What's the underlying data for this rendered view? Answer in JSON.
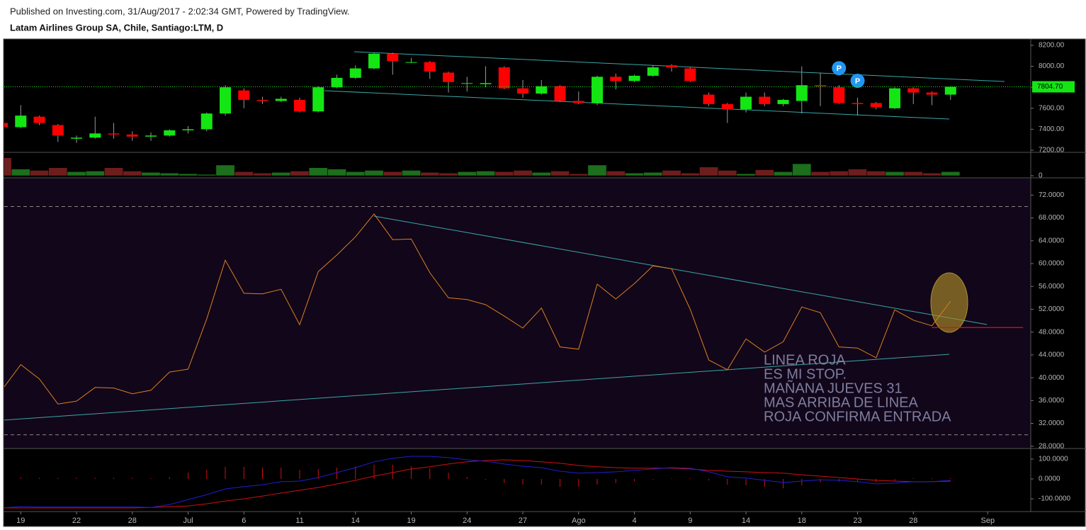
{
  "header": "Published on Investing.com, 31/Aug/2017 - 2:02:34 GMT, Powered by TradingView.",
  "chart_data": [
    {
      "type": "candlestick",
      "title": "Latam Airlines Group SA, Chile, Santiago:LTM, D",
      "categories": [
        null,
        "19",
        null,
        null,
        "22",
        null,
        null,
        "28",
        null,
        null,
        "Jul",
        null,
        null,
        "6",
        null,
        null,
        "11",
        null,
        null,
        "14",
        null,
        null,
        "19",
        null,
        null,
        "24",
        null,
        null,
        "27",
        null,
        null,
        "Ago",
        null,
        null,
        "4",
        null,
        null,
        "9",
        null,
        null,
        "14",
        null,
        null,
        "18",
        null,
        null,
        "23",
        null,
        null,
        "28",
        null,
        null,
        null,
        "Sep"
      ],
      "open": [
        7460,
        7420,
        7520,
        7440,
        7310,
        7320,
        7360,
        7350,
        7330,
        7340,
        7390,
        7400,
        7550,
        7770,
        7680,
        7670,
        7680,
        7570,
        7800,
        7890,
        7980,
        8120,
        8040,
        8040,
        7940,
        7840,
        7830,
        7990,
        7790,
        7740,
        7810,
        7670,
        7650,
        7900,
        7860,
        7910,
        8010,
        7980,
        7730,
        7640,
        7590,
        7710,
        7640,
        7670,
        7820,
        7800,
        7650,
        7650,
        7600,
        7790,
        7750,
        7730,
        null,
        null
      ],
      "high": [
        7470,
        7630,
        7530,
        7450,
        7340,
        7520,
        7460,
        7380,
        7370,
        7400,
        7430,
        7560,
        7820,
        7790,
        7710,
        7710,
        7700,
        7810,
        7920,
        8010,
        8130,
        8130,
        8080,
        8050,
        7950,
        7900,
        8000,
        8000,
        7870,
        7870,
        7820,
        7760,
        7910,
        7930,
        7920,
        8010,
        8020,
        7990,
        7750,
        7650,
        7750,
        7750,
        7690,
        8000,
        7940,
        7820,
        7700,
        7660,
        7800,
        7800,
        7760,
        7810,
        null,
        null
      ],
      "low": [
        7410,
        7410,
        7440,
        7280,
        7270,
        7310,
        7310,
        7290,
        7290,
        7330,
        7360,
        7380,
        7530,
        7600,
        7640,
        7660,
        7560,
        7560,
        7790,
        7880,
        7970,
        7920,
        8030,
        7880,
        7750,
        7760,
        7800,
        7780,
        7700,
        7730,
        7660,
        7640,
        7630,
        7780,
        7850,
        7900,
        7950,
        7850,
        7620,
        7460,
        7560,
        7620,
        7620,
        7550,
        7620,
        7640,
        7530,
        7590,
        7590,
        7640,
        7630,
        7680,
        null,
        null
      ],
      "close": [
        7420,
        7530,
        7460,
        7340,
        7320,
        7360,
        7350,
        7330,
        7340,
        7390,
        7400,
        7550,
        7800,
        7680,
        7670,
        7690,
        7570,
        7800,
        7890,
        7980,
        8120,
        8050,
        8040,
        7950,
        7850,
        7840,
        7840,
        7790,
        7740,
        7810,
        7670,
        7650,
        7900,
        7860,
        7910,
        7990,
        7990,
        7860,
        7640,
        7590,
        7710,
        7640,
        7680,
        7820,
        7810,
        7650,
        7640,
        7610,
        7790,
        7750,
        7730,
        7804.7,
        null,
        null
      ],
      "up_color": "#14e614",
      "down_color": "#ff0000",
      "ylim": [
        7180,
        8247
      ],
      "yticks": [
        {
          "value": 7200,
          "label": "7200.00"
        },
        {
          "value": 7400,
          "label": "7400.00"
        },
        {
          "value": 7600,
          "label": "7600.00"
        },
        {
          "value": 7800,
          "label": "7800.00"
        },
        {
          "value": 8000,
          "label": "8000.00"
        },
        {
          "value": 8200,
          "label": "8200.00"
        }
      ],
      "last_label": "7804.70",
      "markers": [
        {
          "index": 45,
          "label": "P"
        },
        {
          "index": 46,
          "label": "P"
        }
      ],
      "marker_color": "#2196f3"
    },
    {
      "type": "bar",
      "values": [
        27,
        10,
        8,
        12,
        6,
        7,
        12,
        7,
        5,
        4,
        3,
        2,
        16,
        6,
        4,
        5,
        7,
        12,
        10,
        6,
        8,
        6,
        8,
        5,
        4,
        6,
        7,
        6,
        8,
        5,
        7,
        3,
        16,
        7,
        4,
        5,
        8,
        4,
        13,
        8,
        3,
        9,
        6,
        18,
        6,
        7,
        10,
        7,
        6,
        6,
        4,
        6,
        null,
        null
      ],
      "up_color": "#1d6e1d",
      "down_color": "#6e1d1d",
      "ylim": [
        0,
        33
      ],
      "yticks": [
        0
      ]
    },
    {
      "type": "line",
      "values": [
        37.9,
        42.3,
        39.8,
        35.4,
        35.9,
        38.3,
        38.2,
        37.2,
        37.8,
        41.0,
        41.5,
        50.3,
        60.6,
        54.8,
        54.7,
        55.5,
        49.3,
        58.6,
        61.5,
        64.7,
        68.7,
        64.2,
        64.3,
        58.4,
        54.0,
        53.7,
        52.8,
        50.8,
        48.7,
        52.2,
        45.4,
        45.0,
        56.4,
        53.8,
        56.5,
        59.6,
        59.1,
        52.0,
        43.1,
        41.4,
        46.8,
        44.5,
        46.3,
        52.4,
        51.4,
        45.4,
        45.2,
        43.5,
        51.9,
        50.1,
        49.1,
        53.4,
        null,
        null
      ],
      "color": "#d9801e",
      "ylim": [
        27.6,
        74.9
      ],
      "yticks": [
        {
          "value": 28,
          "label": "28.0000"
        },
        {
          "value": 32,
          "label": "32.0000"
        },
        {
          "value": 36,
          "label": "36.0000"
        },
        {
          "value": 40,
          "label": "40.0000"
        },
        {
          "value": 44,
          "label": "44.0000"
        },
        {
          "value": 48,
          "label": "48.0000"
        },
        {
          "value": 52,
          "label": "52.0000"
        },
        {
          "value": 56,
          "label": "56.0000"
        },
        {
          "value": 60,
          "label": "60.0000"
        },
        {
          "value": 64,
          "label": "64.0000"
        },
        {
          "value": 68,
          "label": "68.0000"
        },
        {
          "value": 72,
          "label": "72.0000"
        }
      ],
      "bands": [
        30,
        70
      ],
      "stop_line": 48.8,
      "stop_color": "#e01010",
      "annotation": [
        "LINEA ROJA",
        "ES MI STOP.",
        "MAÑANA JUEVES 31",
        "MAS ARRIBA DE LINEA",
        "ROJA CONFIRMA ENTRADA"
      ]
    },
    {
      "type": "macd",
      "macd": [
        -146,
        -139,
        -141,
        -141,
        -141,
        -141,
        -141,
        -141,
        -143,
        -129,
        -104,
        -79,
        -50,
        -39,
        -29,
        -14,
        -11,
        7,
        32,
        57,
        86,
        104,
        114,
        114,
        107,
        96,
        89,
        75,
        64,
        57,
        39,
        29,
        32,
        36,
        43,
        50,
        57,
        54,
        36,
        11,
        4,
        -7,
        -18,
        -11,
        -4,
        -7,
        -14,
        -25,
        -21,
        -14,
        -14,
        -7,
        null,
        null
      ],
      "signal": [
        -146,
        -146,
        -146,
        -146,
        -146,
        -146,
        -146,
        -146,
        -143,
        -139,
        -136,
        -125,
        -111,
        -100,
        -86,
        -71,
        -57,
        -43,
        -25,
        -7,
        14,
        32,
        50,
        61,
        75,
        86,
        93,
        96,
        93,
        86,
        79,
        68,
        61,
        57,
        54,
        54,
        54,
        50,
        43,
        39,
        36,
        32,
        29,
        21,
        14,
        7,
        0,
        -7,
        -11,
        -14,
        -14,
        -11,
        null,
        null
      ],
      "histogram": [
        0,
        7,
        5,
        5,
        5,
        5,
        5,
        5,
        0,
        10,
        32,
        46,
        61,
        61,
        57,
        57,
        46,
        50,
        57,
        64,
        72,
        72,
        64,
        53,
        32,
        10,
        -4,
        -21,
        -29,
        -29,
        -40,
        -39,
        -29,
        -21,
        -11,
        -4,
        3,
        4,
        -7,
        -28,
        -32,
        -39,
        -47,
        -32,
        -18,
        -14,
        -14,
        -18,
        -10,
        0,
        0,
        4,
        null,
        null
      ],
      "macd_color": "#1f1fd0",
      "signal_color": "#d01010",
      "histogram_color": "#d01010",
      "ylim": [
        -157,
        146
      ],
      "yticks": [
        {
          "value": -100,
          "label": "-100.0000"
        },
        {
          "value": 0,
          "label": "0.0000"
        },
        {
          "value": 100,
          "label": "100.0000"
        }
      ]
    }
  ]
}
